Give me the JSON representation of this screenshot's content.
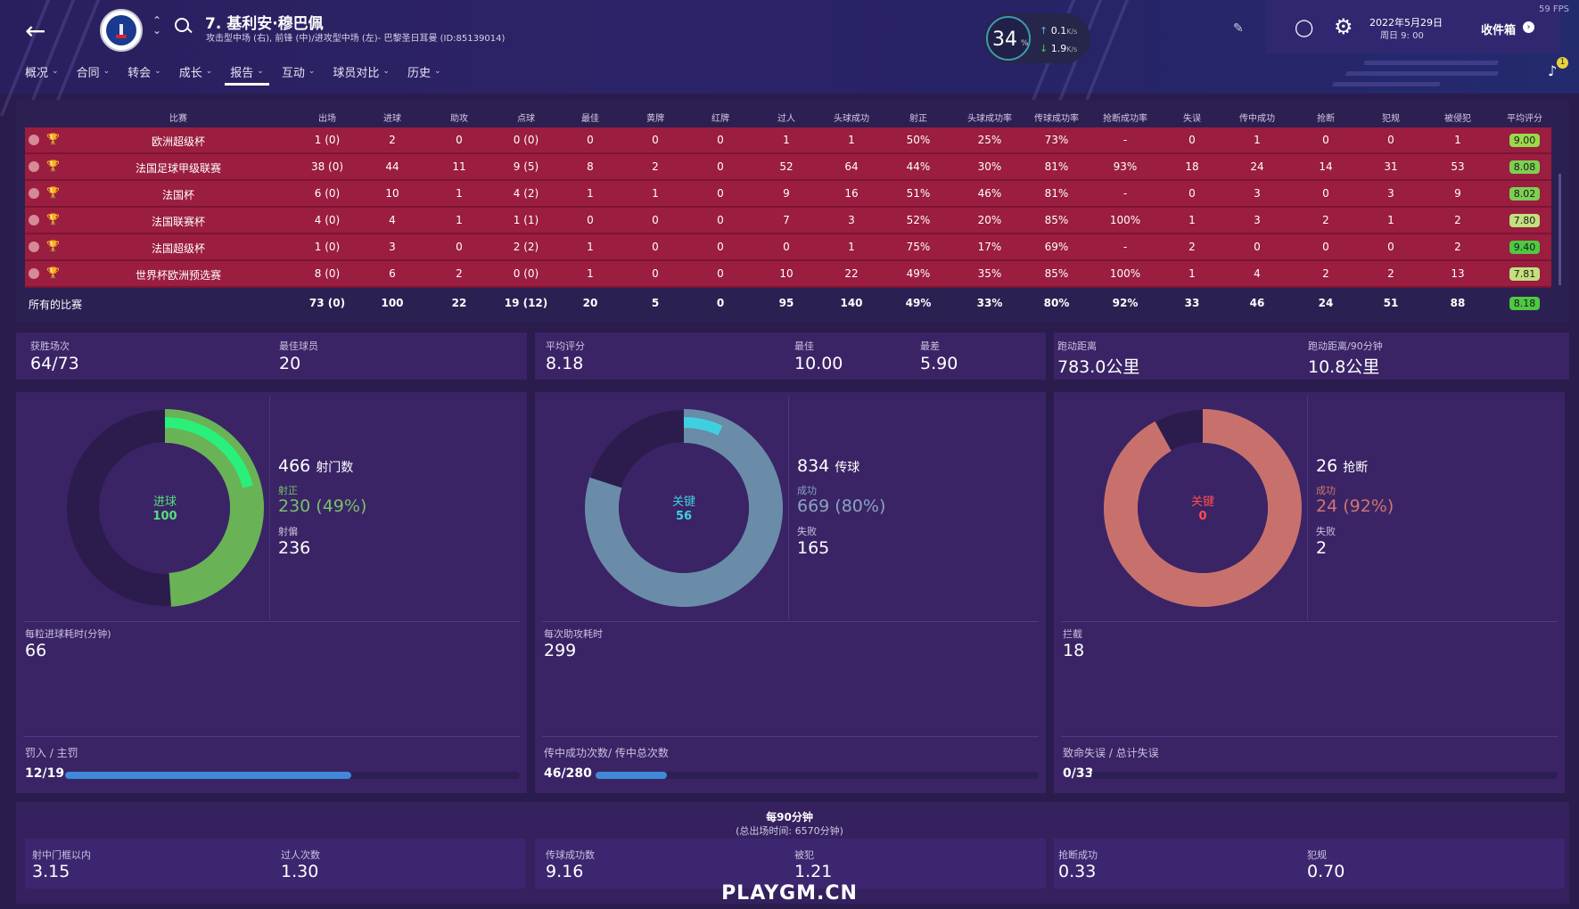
{
  "header": {
    "player_name": "7. 基利安·穆巴佩",
    "positions": "攻击型中场 (右), 前锋 (中)/进攻型中场 (左)- 巴黎圣日耳曼 (ID:85139014)",
    "team_icon": "psg-crest-icon",
    "gauge_value": "34",
    "gauge_unit": "%",
    "net_up": "0.1",
    "net_down": "1.9",
    "net_unit": "K/s",
    "date": "2022年5月29日",
    "time": "周日 9: 00",
    "inbox_label": "收件箱",
    "fps": "59 FPS",
    "notif_count": "1"
  },
  "tabs": [
    {
      "label": "概况"
    },
    {
      "label": "合同"
    },
    {
      "label": "转会"
    },
    {
      "label": "成长"
    },
    {
      "label": "报告",
      "active": true
    },
    {
      "label": "互动"
    },
    {
      "label": "球员对比"
    },
    {
      "label": "历史"
    }
  ],
  "table": {
    "headers": [
      "比赛",
      "出场",
      "进球",
      "助攻",
      "点球",
      "最佳",
      "黄牌",
      "红牌",
      "过人",
      "头球成功",
      "射正",
      "头球成功率",
      "传球成功率",
      "抢断成功率",
      "失误",
      "传中成功",
      "抢断",
      "犯规",
      "被侵犯",
      "平均评分"
    ],
    "rows": [
      {
        "comp": "欧洲超级杯",
        "cells": [
          "1 (0)",
          "2",
          "0",
          "0 (0)",
          "0",
          "0",
          "0",
          "1",
          "1",
          "50%",
          "25%",
          "73%",
          "-",
          "0",
          "1",
          "0",
          "0",
          "1"
        ],
        "rating": "9.00",
        "rating_color": "#9ad94a"
      },
      {
        "comp": "法国足球甲级联赛",
        "cells": [
          "38 (0)",
          "44",
          "11",
          "9 (5)",
          "8",
          "2",
          "0",
          "52",
          "64",
          "44%",
          "30%",
          "81%",
          "93%",
          "18",
          "24",
          "14",
          "31",
          "53"
        ],
        "rating": "8.08",
        "rating_color": "#7dcf52"
      },
      {
        "comp": "法国杯",
        "cells": [
          "6 (0)",
          "10",
          "1",
          "4 (2)",
          "1",
          "1",
          "0",
          "9",
          "16",
          "51%",
          "46%",
          "81%",
          "-",
          "0",
          "3",
          "0",
          "3",
          "9"
        ],
        "rating": "8.02",
        "rating_color": "#7dcf52"
      },
      {
        "comp": "法国联赛杯",
        "cells": [
          "4 (0)",
          "4",
          "1",
          "1 (1)",
          "0",
          "0",
          "0",
          "7",
          "3",
          "52%",
          "20%",
          "85%",
          "100%",
          "1",
          "3",
          "2",
          "1",
          "2"
        ],
        "rating": "7.80",
        "rating_color": "#c3df7e"
      },
      {
        "comp": "法国超级杯",
        "cells": [
          "1 (0)",
          "3",
          "0",
          "2 (2)",
          "1",
          "0",
          "0",
          "0",
          "1",
          "75%",
          "17%",
          "69%",
          "-",
          "2",
          "0",
          "0",
          "0",
          "2"
        ],
        "rating": "9.40",
        "rating_color": "#4ec942"
      },
      {
        "comp": "世界杯欧洲预选赛",
        "cells": [
          "8 (0)",
          "6",
          "2",
          "0 (0)",
          "1",
          "0",
          "0",
          "10",
          "22",
          "49%",
          "35%",
          "85%",
          "100%",
          "1",
          "4",
          "2",
          "2",
          "13"
        ],
        "rating": "7.81",
        "rating_color": "#c3df7e"
      }
    ],
    "total_label": "所有的比赛",
    "totals": [
      "73 (0)",
      "100",
      "22",
      "19 (12)",
      "20",
      "5",
      "0",
      "95",
      "140",
      "49%",
      "33%",
      "80%",
      "92%",
      "33",
      "46",
      "24",
      "51",
      "88"
    ],
    "total_rating": "8.18"
  },
  "summary": [
    {
      "label": "获胜场次",
      "value": "64/73"
    },
    {
      "label": "最佳球员",
      "value": "20"
    },
    {
      "label": "平均评分",
      "value": "8.18"
    },
    {
      "label": "最佳",
      "value": "10.00"
    },
    {
      "label": "最差",
      "value": "5.90"
    },
    {
      "label": "跑动距离",
      "value": "783.0公里"
    },
    {
      "label": "跑动距离/90分钟",
      "value": "10.8公里"
    }
  ],
  "panels": [
    {
      "ring_label": "进球",
      "ring_value": "100",
      "ring_label_color": "#54e07a",
      "ring_share_inner": 0.21,
      "ring_share_outer": 0.49,
      "outer_color": "#69b356",
      "inner_color": "#2af07a",
      "total_value": "466",
      "total_label": "射门数",
      "a_label": "射正",
      "a_value": "230 (49%)",
      "a_color": "#79c06a",
      "b_label": "射偏",
      "b_value": "236",
      "mid_label": "每粒进球耗时(分钟)",
      "mid_value": "66",
      "bar_label": "罚入 / 主罚",
      "bar_text": "12/19",
      "bar_frac": 0.63
    },
    {
      "ring_label": "关键",
      "ring_value": "56",
      "ring_label_color": "#3fd0e0",
      "ring_share_inner": 0.07,
      "ring_share_outer": 0.8,
      "outer_color": "#6a8ca8",
      "inner_color": "#3fd0e0",
      "total_value": "834",
      "total_label": "传球",
      "a_label": "成功",
      "a_value": "669 (80%)",
      "a_color": "#8aa4bf",
      "b_label": "失败",
      "b_value": "165",
      "mid_label": "每次助攻耗时",
      "mid_value": "299",
      "bar_label": "传中成功次数/ 传中总次数",
      "bar_text": "46/280",
      "bar_frac": 0.16
    },
    {
      "ring_label": "关键",
      "ring_value": "0",
      "ring_label_color": "#ff4d4d",
      "ring_share_inner": 0.0,
      "ring_share_outer": 0.92,
      "outer_color": "#c8716c",
      "inner_color": "#c8716c",
      "total_value": "26",
      "total_label": "抢断",
      "a_label": "成功",
      "a_value": "24 (92%)",
      "a_color": "#d2746f",
      "b_label": "失败",
      "b_value": "2",
      "mid_label": "拦截",
      "mid_value": "18",
      "bar_label": "致命失误 / 总计失误",
      "bar_text": "0/33",
      "bar_frac": 0.0
    }
  ],
  "per90": {
    "title": "每90分钟",
    "subtitle": "(总出场时间: 6570分钟)",
    "items": [
      {
        "label": "射中门框以内",
        "value": "3.15"
      },
      {
        "label": "过人次数",
        "value": "1.30"
      },
      {
        "label": "传球成功数",
        "value": "9.16"
      },
      {
        "label": "被犯",
        "value": "1.21"
      },
      {
        "label": "抢断成功",
        "value": "0.33"
      },
      {
        "label": "犯规",
        "value": "0.70"
      }
    ]
  },
  "watermark": "PLAYGM.CN"
}
